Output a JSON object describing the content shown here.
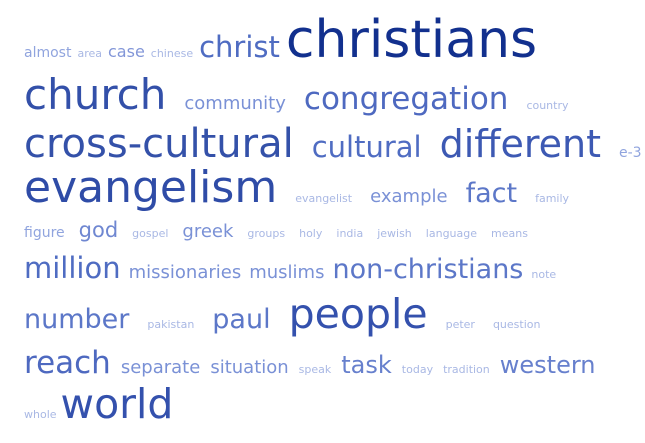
{
  "cloud": {
    "lines": [
      {
        "words": [
          {
            "text": "almost",
            "weight": 3
          },
          {
            "text": "area",
            "weight": 1
          },
          {
            "text": "case",
            "weight": 4
          },
          {
            "text": "chinese",
            "weight": 1
          },
          {
            "text": "christ",
            "weight": 9
          },
          {
            "text": "christians",
            "weight": 16
          }
        ]
      },
      {
        "words": [
          {
            "text": "church",
            "weight": 14
          },
          {
            "text": "community",
            "weight": 5
          },
          {
            "text": "congregation",
            "weight": 10
          },
          {
            "text": "country",
            "weight": 1
          }
        ]
      },
      {
        "words": [
          {
            "text": "cross-cultural",
            "weight": 12
          },
          {
            "text": "cultural",
            "weight": 9
          },
          {
            "text": "different",
            "weight": 11
          },
          {
            "text": "e-3",
            "weight": 3
          }
        ]
      },
      {
        "words": [
          {
            "text": "evangelism",
            "weight": 15
          },
          {
            "text": "evangelist",
            "weight": 1
          },
          {
            "text": "example",
            "weight": 5
          },
          {
            "text": "fact",
            "weight": 8
          },
          {
            "text": "family",
            "weight": 1
          }
        ]
      },
      {
        "words": [
          {
            "text": "figure",
            "weight": 3
          },
          {
            "text": "god",
            "weight": 6
          },
          {
            "text": "gospel",
            "weight": 1
          },
          {
            "text": "greek",
            "weight": 5
          },
          {
            "text": "groups",
            "weight": 1
          },
          {
            "text": "holy",
            "weight": 1
          },
          {
            "text": "india",
            "weight": 1
          },
          {
            "text": "jewish",
            "weight": 1
          },
          {
            "text": "language",
            "weight": 1
          },
          {
            "text": "means",
            "weight": 1
          }
        ]
      },
      {
        "words": [
          {
            "text": "million",
            "weight": 9
          },
          {
            "text": "missionaries",
            "weight": 5
          },
          {
            "text": "muslims",
            "weight": 5
          },
          {
            "text": "non-christians",
            "weight": 8
          },
          {
            "text": "note",
            "weight": 1
          }
        ]
      },
      {
        "words": [
          {
            "text": "number",
            "weight": 8
          },
          {
            "text": "pakistan",
            "weight": 1
          },
          {
            "text": "paul",
            "weight": 8
          },
          {
            "text": "people",
            "weight": 13
          },
          {
            "text": "peter",
            "weight": 1
          },
          {
            "text": "question",
            "weight": 1
          }
        ]
      },
      {
        "words": [
          {
            "text": "reach",
            "weight": 10
          },
          {
            "text": "separate",
            "weight": 5
          },
          {
            "text": "situation",
            "weight": 5
          },
          {
            "text": "speak",
            "weight": 1
          },
          {
            "text": "task",
            "weight": 7
          },
          {
            "text": "today",
            "weight": 1
          },
          {
            "text": "tradition",
            "weight": 1
          },
          {
            "text": "western",
            "weight": 7
          }
        ]
      },
      {
        "words": [
          {
            "text": "whole",
            "weight": 1
          },
          {
            "text": "world",
            "weight": 13
          }
        ]
      }
    ]
  }
}
